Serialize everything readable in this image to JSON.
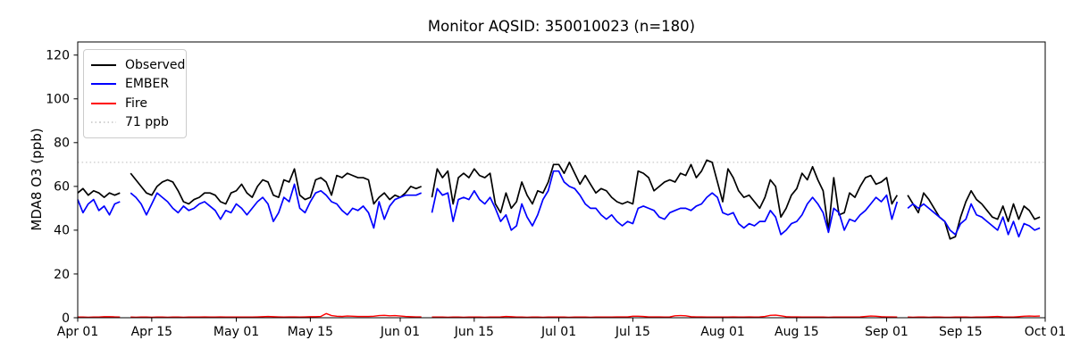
{
  "title": "Monitor AQSID: 350010023 (n=180)",
  "chart_data": {
    "type": "line",
    "title": "Monitor AQSID: 350010023 (n=180)",
    "xlabel": "",
    "ylabel": "MDA8 O3 (ppb)",
    "ylim": [
      0,
      126
    ],
    "y_ticks": [
      0,
      20,
      40,
      60,
      80,
      100,
      120
    ],
    "grid": false,
    "legend_position": "upper-left",
    "x_total_days": 183,
    "x_tick_days": [
      0,
      14,
      30,
      44,
      61,
      75,
      91,
      105,
      122,
      136,
      153,
      167,
      183
    ],
    "x_tick_labels": [
      "Apr 01",
      "Apr 15",
      "May 01",
      "May 15",
      "Jun 01",
      "Jun 15",
      "Jul 01",
      "Jul 15",
      "Aug 01",
      "Aug 15",
      "Sep 01",
      "Sep 15",
      "Oct 01"
    ],
    "x_note": "daily values, day 0 = Apr 01; null = missing day (n=180 of 183)",
    "threshold": {
      "label": "71 ppb",
      "value": 71,
      "color": "#d3d3d3",
      "style": "dotted"
    },
    "series": [
      {
        "name": "Observed",
        "color": "#000000",
        "values": [
          57,
          59,
          56,
          58,
          57,
          55,
          57,
          56,
          57,
          null,
          66,
          63,
          60,
          57,
          56,
          60,
          62,
          63,
          62,
          58,
          53,
          52,
          54,
          55,
          57,
          57,
          56,
          53,
          52,
          57,
          58,
          61,
          57,
          55,
          60,
          63,
          62,
          56,
          55,
          63,
          62,
          68,
          56,
          54,
          55,
          63,
          64,
          62,
          56,
          65,
          64,
          66,
          65,
          64,
          64,
          63,
          52,
          55,
          57,
          54,
          56,
          55,
          57,
          60,
          59,
          60,
          null,
          55,
          68,
          64,
          67,
          52,
          64,
          66,
          64,
          68,
          65,
          64,
          66,
          52,
          48,
          57,
          50,
          53,
          62,
          56,
          52,
          58,
          57,
          62,
          70,
          70,
          66,
          71,
          66,
          61,
          65,
          61,
          57,
          59,
          58,
          55,
          53,
          52,
          53,
          52,
          67,
          66,
          64,
          58,
          60,
          62,
          63,
          62,
          66,
          65,
          70,
          64,
          67,
          72,
          71,
          62,
          53,
          68,
          64,
          58,
          55,
          56,
          53,
          50,
          55,
          63,
          60,
          46,
          50,
          56,
          59,
          66,
          63,
          69,
          63,
          58,
          40,
          64,
          47,
          48,
          57,
          55,
          60,
          64,
          65,
          61,
          62,
          64,
          52,
          56,
          null,
          56,
          52,
          48,
          57,
          54,
          50,
          46,
          44,
          36,
          37,
          46,
          53,
          58,
          54,
          52,
          49,
          46,
          45,
          51,
          44,
          52,
          45,
          51,
          49,
          45,
          46
        ]
      },
      {
        "name": "EMBER",
        "color": "#0000ff",
        "values": [
          54,
          48,
          52,
          54,
          49,
          51,
          47,
          52,
          53,
          null,
          57,
          55,
          52,
          47,
          52,
          57,
          55,
          53,
          50,
          48,
          51,
          49,
          50,
          52,
          53,
          51,
          49,
          45,
          49,
          48,
          52,
          50,
          47,
          50,
          53,
          55,
          52,
          44,
          48,
          55,
          53,
          61,
          50,
          48,
          53,
          57,
          58,
          56,
          53,
          52,
          49,
          47,
          50,
          49,
          51,
          48,
          41,
          53,
          45,
          51,
          54,
          55,
          56,
          56,
          56,
          57,
          null,
          48,
          59,
          56,
          57,
          44,
          54,
          55,
          54,
          58,
          54,
          52,
          55,
          50,
          44,
          47,
          40,
          42,
          52,
          46,
          42,
          47,
          54,
          58,
          67,
          67,
          62,
          60,
          59,
          56,
          52,
          50,
          50,
          47,
          45,
          47,
          44,
          42,
          44,
          43,
          50,
          51,
          50,
          49,
          46,
          45,
          48,
          49,
          50,
          50,
          49,
          51,
          52,
          55,
          57,
          55,
          48,
          47,
          48,
          43,
          41,
          43,
          42,
          44,
          44,
          49,
          46,
          38,
          40,
          43,
          44,
          47,
          52,
          55,
          52,
          48,
          39,
          50,
          48,
          40,
          45,
          44,
          47,
          49,
          52,
          55,
          53,
          56,
          45,
          53,
          null,
          50,
          52,
          50,
          52,
          50,
          48,
          46,
          44,
          40,
          38,
          43,
          45,
          52,
          47,
          46,
          44,
          42,
          40,
          46,
          38,
          44,
          37,
          43,
          42,
          40,
          41
        ]
      },
      {
        "name": "Fire",
        "color": "#ff0000",
        "values": [
          0.3,
          0.3,
          0.2,
          0.3,
          0.3,
          0.5,
          0.5,
          0.4,
          0.3,
          null,
          0.3,
          0.2,
          0.3,
          0.3,
          0.2,
          0.3,
          0.3,
          0.2,
          0.3,
          0.3,
          0.2,
          0.3,
          0.3,
          0.3,
          0.4,
          0.3,
          0.3,
          0.4,
          0.3,
          0.3,
          0.3,
          0.3,
          0.3,
          0.3,
          0.4,
          0.5,
          0.6,
          0.5,
          0.4,
          0.3,
          0.4,
          0.4,
          0.3,
          0.4,
          0.5,
          0.5,
          0.6,
          1.9,
          1.0,
          0.7,
          0.6,
          0.8,
          0.7,
          0.6,
          0.6,
          0.6,
          0.7,
          1.0,
          1.1,
          0.9,
          1.0,
          0.8,
          0.6,
          0.5,
          0.4,
          0.4,
          null,
          0.3,
          0.3,
          0.3,
          0.2,
          0.3,
          0.3,
          0.2,
          0.3,
          0.3,
          0.3,
          0.2,
          0.3,
          0.3,
          0.4,
          0.6,
          0.5,
          0.3,
          0.3,
          0.2,
          0.3,
          0.3,
          0.2,
          0.3,
          0.3,
          0.3,
          0.3,
          0.2,
          0.3,
          0.3,
          0.3,
          0.2,
          0.3,
          0.3,
          0.3,
          0.3,
          0.4,
          0.4,
          0.4,
          0.7,
          0.7,
          0.6,
          0.4,
          0.4,
          0.4,
          0.3,
          0.4,
          0.9,
          1.0,
          0.9,
          0.5,
          0.4,
          0.4,
          0.3,
          0.3,
          0.3,
          0.3,
          0.3,
          0.4,
          0.3,
          0.3,
          0.4,
          0.3,
          0.4,
          0.6,
          1.1,
          1.2,
          0.9,
          0.5,
          0.4,
          0.4,
          0.3,
          0.3,
          0.3,
          0.3,
          0.3,
          0.2,
          0.3,
          0.3,
          0.3,
          0.3,
          0.3,
          0.4,
          0.6,
          0.8,
          0.7,
          0.5,
          0.4,
          0.4,
          0.3,
          null,
          0.3,
          0.2,
          0.3,
          0.3,
          0.2,
          0.3,
          0.3,
          0.2,
          0.2,
          0.3,
          0.3,
          0.3,
          0.2,
          0.3,
          0.3,
          0.4,
          0.5,
          0.6,
          0.4,
          0.3,
          0.3,
          0.5,
          0.7,
          0.8,
          0.7,
          0.8
        ]
      }
    ]
  }
}
